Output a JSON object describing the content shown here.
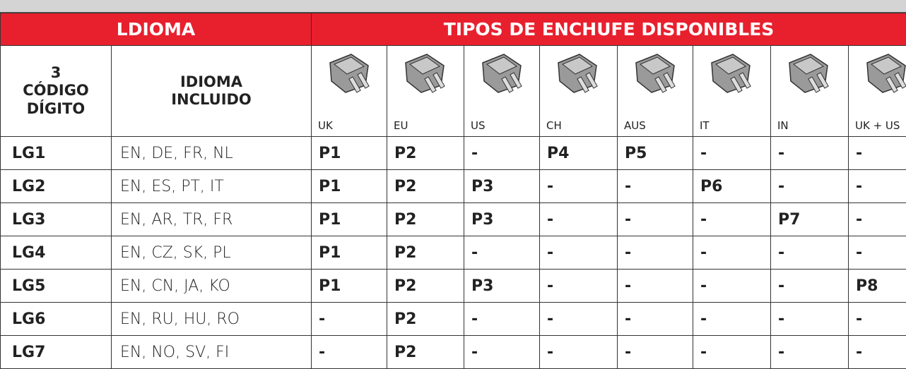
{
  "header": {
    "left": "LDIOMA",
    "right": "TIPOS DE ENCHUFE DISPONIBLES"
  },
  "columns": [
    "3\nCÓDIGO\nDÍGITO",
    "IDIOMA\nINCLUIDO"
  ],
  "plugs": [
    "UK",
    "EU",
    "US",
    "CH",
    "AUS",
    "IT",
    "IN",
    "UK + US"
  ],
  "rows": [
    [
      "LG1",
      "EN, DE, FR, NL",
      "P1",
      "P2",
      "-",
      "P4",
      "P5",
      "-",
      "-",
      "-"
    ],
    [
      "LG2",
      "EN, ES, PT, IT",
      "P1",
      "P2",
      "P3",
      "-",
      "-",
      "P6",
      "-",
      "-"
    ],
    [
      "LG3",
      "EN, AR, TR, FR",
      "P1",
      "P2",
      "P3",
      "-",
      "-",
      "-",
      "P7",
      "-"
    ],
    [
      "LG4",
      "EN, CZ, SK, PL",
      "P1",
      "P2",
      "-",
      "-",
      "-",
      "-",
      "-",
      "-"
    ],
    [
      "LG5",
      "EN, CN, JA, KO",
      "P1",
      "P2",
      "P3",
      "-",
      "-",
      "-",
      "-",
      "P8"
    ],
    [
      "LG6",
      "EN, RU, HU, RO",
      "-",
      "P2",
      "-",
      "-",
      "-",
      "-",
      "-",
      "-"
    ],
    [
      "LG7",
      "EN, NO, SV, FI",
      "-",
      "P2",
      "-",
      "-",
      "-",
      "-",
      "-",
      "-"
    ]
  ]
}
